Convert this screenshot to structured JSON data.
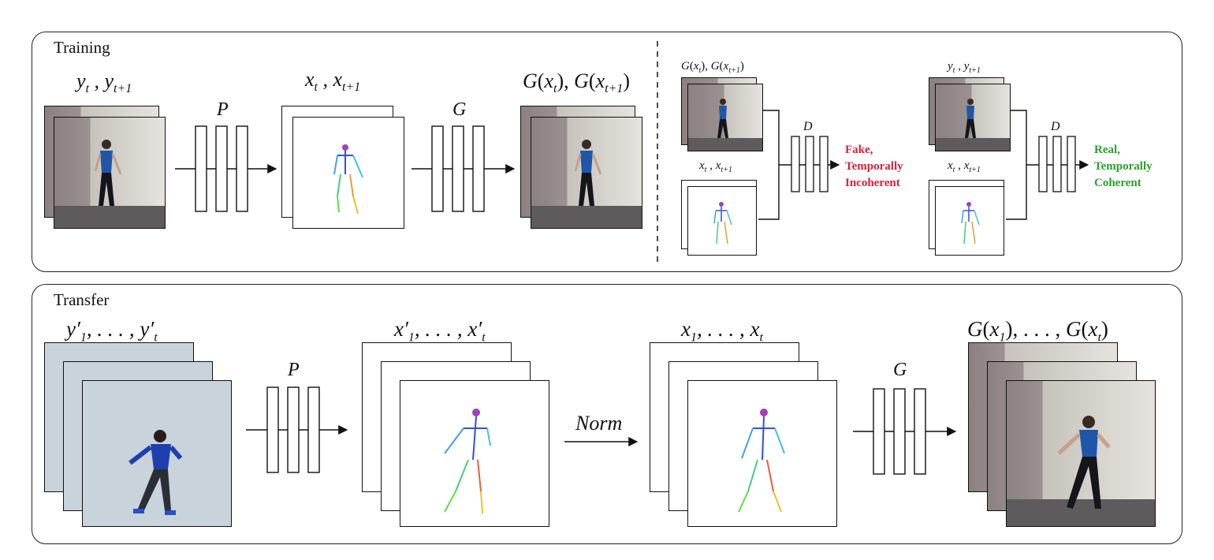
{
  "training": {
    "title": "Training",
    "input_label": "y_t , y_{t+1}",
    "pose_label": "x_t , x_{t+1}",
    "output_label": "G(x_t), G(x_{t+1})",
    "network_p": "P",
    "network_g": "G",
    "disc_fake": {
      "top_label": "G(x_t), G(x_{t+1})",
      "bottom_label": "x_t , x_{t+1}",
      "network": "D",
      "result": "Fake, Temporally Incoherent",
      "result_color": "#d9213b"
    },
    "disc_real": {
      "top_label": "y_t , y_{t+1}",
      "bottom_label": "x_t , x_{t+1}",
      "network": "D",
      "result": "Real, Temporally Coherent",
      "result_color": "#2aa12a"
    }
  },
  "transfer": {
    "title": "Transfer",
    "source_label": "y'_1, . . . , y'_t",
    "pose_label": "x'_1, . . . , x'_t",
    "norm_label": "Norm",
    "norm_pose_label": "x_1, . . . , x_t",
    "output_label": "G(x_1), . . . , G(x_t)",
    "network_p": "P",
    "network_g": "G"
  },
  "colors": {
    "fake": "#d9213b",
    "real": "#2aa12a",
    "line": "#111111"
  }
}
